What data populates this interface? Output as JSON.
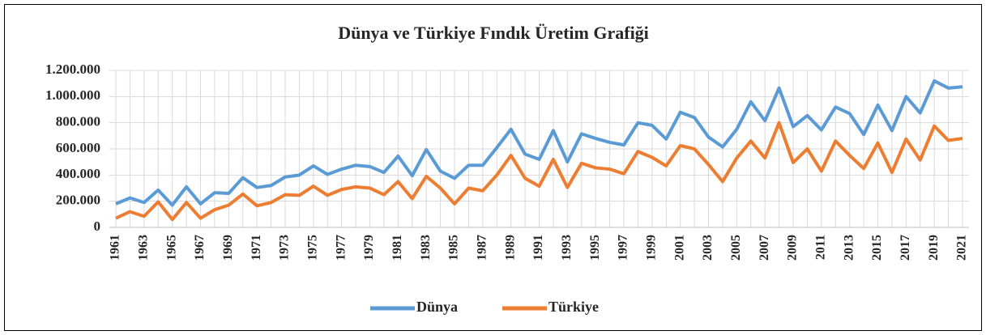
{
  "chart_data": {
    "type": "line",
    "title": "Dünya ve Türkiye Fındık Üretim Grafiği",
    "categories": [
      "1961",
      null,
      "1963",
      null,
      "1965",
      null,
      "1967",
      null,
      "1969",
      null,
      "1971",
      null,
      "1973",
      null,
      "1975",
      null,
      "1977",
      null,
      "1979",
      null,
      "1981",
      null,
      "1983",
      null,
      "1985",
      null,
      "1987",
      null,
      "1989",
      null,
      "1991",
      null,
      "1993",
      null,
      "1995",
      null,
      "1997",
      null,
      "1999",
      null,
      "2001",
      null,
      "2003",
      null,
      "2005",
      null,
      "2007",
      null,
      "2009",
      null,
      "2011",
      null,
      "2013",
      null,
      "2015",
      null,
      "2017",
      null,
      "2019",
      null,
      "2021"
    ],
    "series": [
      {
        "name": "Dünya",
        "color": "#5b9bd5",
        "values": [
          180000,
          225000,
          190000,
          285000,
          170000,
          310000,
          180000,
          265000,
          260000,
          380000,
          305000,
          320000,
          385000,
          400000,
          470000,
          405000,
          445000,
          475000,
          465000,
          420000,
          545000,
          395000,
          595000,
          430000,
          375000,
          475000,
          475000,
          610000,
          750000,
          560000,
          520000,
          740000,
          500000,
          715000,
          680000,
          650000,
          630000,
          800000,
          780000,
          675000,
          880000,
          840000,
          690000,
          615000,
          750000,
          960000,
          815000,
          1065000,
          770000,
          855000,
          745000,
          920000,
          870000,
          710000,
          935000,
          740000,
          1000000,
          875000,
          1120000,
          1065000,
          1075000
        ]
      },
      {
        "name": "Türkiye",
        "color": "#ed7d31",
        "values": [
          70000,
          120000,
          85000,
          195000,
          60000,
          190000,
          70000,
          135000,
          170000,
          255000,
          165000,
          190000,
          250000,
          245000,
          315000,
          245000,
          290000,
          310000,
          300000,
          250000,
          350000,
          220000,
          390000,
          300000,
          180000,
          300000,
          280000,
          400000,
          550000,
          375000,
          315000,
          520000,
          305000,
          490000,
          455000,
          445000,
          410000,
          580000,
          535000,
          470000,
          625000,
          600000,
          480000,
          350000,
          530000,
          660000,
          530000,
          800000,
          495000,
          600000,
          430000,
          660000,
          550000,
          450000,
          645000,
          420000,
          675000,
          515000,
          775000,
          665000,
          680000
        ]
      }
    ],
    "ylim": [
      0,
      1200000
    ],
    "yticks": [
      0,
      {
        "value": 200000,
        "label": "200.000"
      },
      {
        "value": 400000,
        "label": "400.000"
      },
      {
        "value": 600000,
        "label": "600.000"
      },
      {
        "value": 800000,
        "label": "800.000"
      },
      {
        "value": 1000000,
        "label": "1.000.000"
      },
      {
        "value": 1200000,
        "label": "1.200.000"
      }
    ],
    "grid": true,
    "legend": "bottom"
  }
}
